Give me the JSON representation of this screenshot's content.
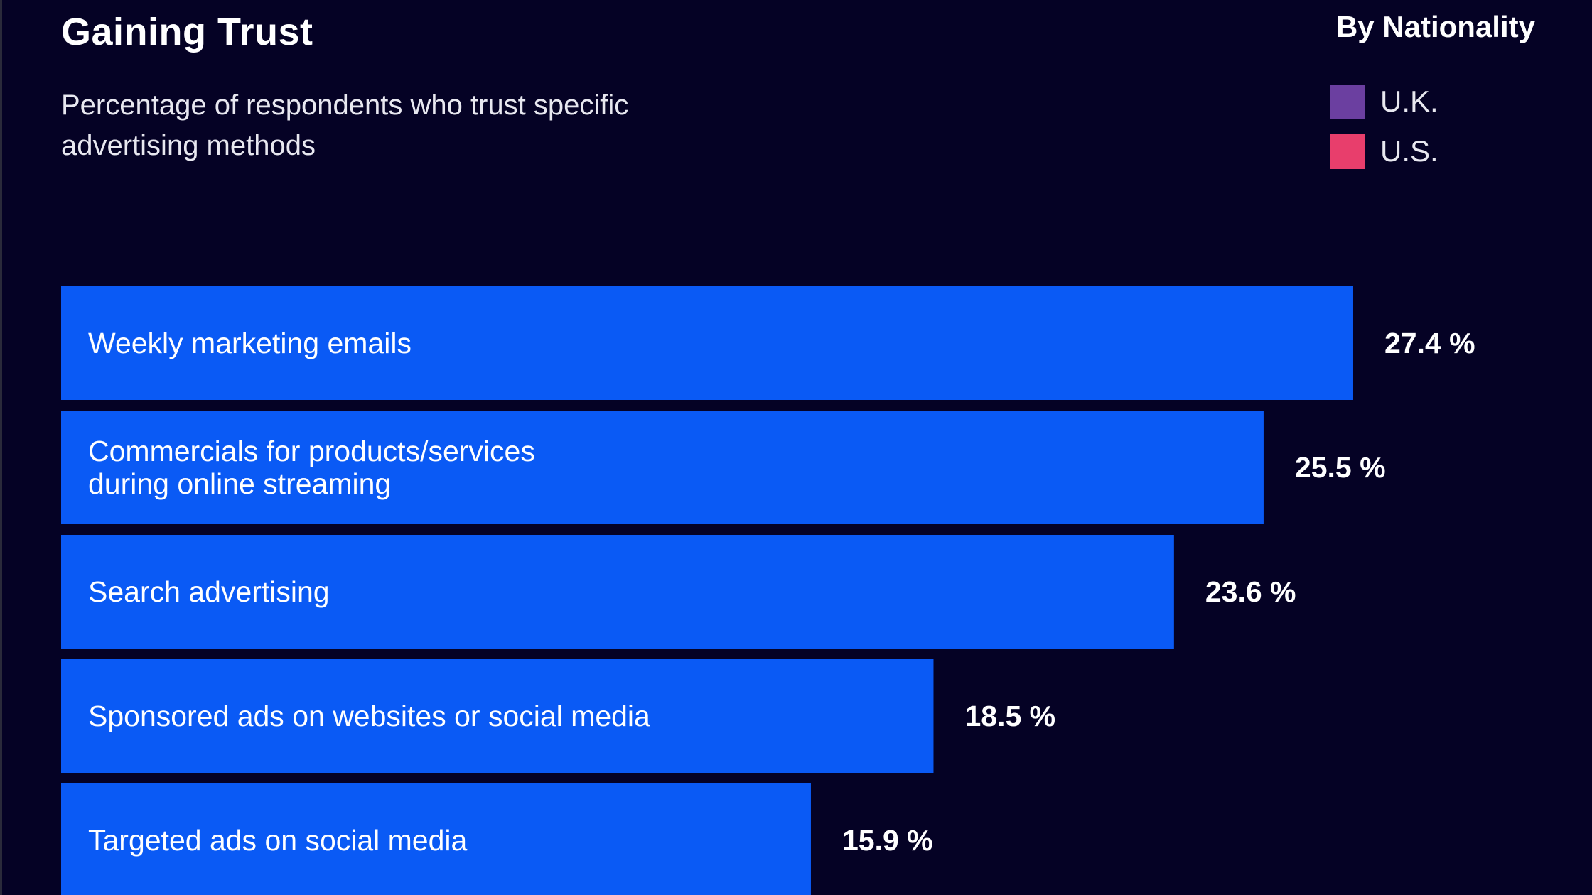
{
  "header": {
    "title": "Gaining Trust",
    "subtitle": "Percentage of respondents who trust specific advertising methods"
  },
  "legend": {
    "title": "By Nationality",
    "items": [
      {
        "label": "U.K.",
        "color": "#6b3fa0"
      },
      {
        "label": "U.S.",
        "color": "#e83e6c"
      }
    ]
  },
  "colors": {
    "background": "#050225",
    "bar": "#0a5af5"
  },
  "chart_data": {
    "type": "bar",
    "orientation": "horizontal",
    "categories": [
      "Weekly marketing emails",
      "Commercials for products/services during online streaming",
      "Search advertising",
      "Sponsored ads on websites or social media",
      "Targeted ads on social media"
    ],
    "category_lines": [
      [
        "Weekly marketing emails"
      ],
      [
        "Commercials for products/services",
        "during online streaming"
      ],
      [
        "Search advertising"
      ],
      [
        "Sponsored ads on websites or social media"
      ],
      [
        "Targeted ads on social media"
      ]
    ],
    "values": [
      27.4,
      25.5,
      23.6,
      18.5,
      15.9
    ],
    "value_labels": [
      "27.4 %",
      "25.5 %",
      "23.6 %",
      "18.5 %",
      "15.9 %"
    ],
    "xlim": [
      0,
      30
    ],
    "grid": false,
    "legend_position": "top-right"
  }
}
